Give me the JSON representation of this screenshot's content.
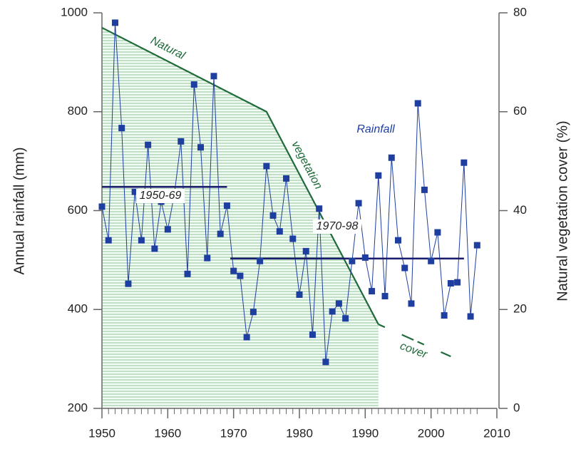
{
  "chart_data": {
    "type": "line",
    "x_label_left": "Annual rainfall (mm)",
    "y2_label": "Natural vegetation cover (%)",
    "xlim": [
      1950,
      2010
    ],
    "xticks": [
      1950,
      1960,
      1970,
      1980,
      1990,
      2000,
      2010
    ],
    "ylim": [
      200,
      1000
    ],
    "yticks": [
      200,
      400,
      600,
      800,
      1000
    ],
    "y2lim": [
      0,
      80
    ],
    "y2ticks": [
      0,
      20,
      40,
      60,
      80
    ],
    "series": [
      {
        "name": "Rainfall",
        "color": "#1e3fa0",
        "x": [
          1950,
          1951,
          1952,
          1953,
          1954,
          1955,
          1956,
          1957,
          1958,
          1959,
          1960,
          1961,
          1962,
          1963,
          1964,
          1965,
          1966,
          1967,
          1968,
          1969,
          1970,
          1971,
          1972,
          1973,
          1974,
          1975,
          1976,
          1977,
          1978,
          1979,
          1980,
          1981,
          1982,
          1983,
          1984,
          1985,
          1986,
          1987,
          1988,
          1989,
          1990,
          1991,
          1992,
          1993,
          1994,
          1995,
          1996,
          1997,
          1998,
          1999,
          2000,
          2001,
          2002,
          2003,
          2004,
          2005,
          2006,
          2007
        ],
        "values": [
          608,
          540,
          980,
          767,
          452,
          638,
          540,
          733,
          523,
          618,
          562,
          633,
          740,
          472,
          855,
          728,
          504,
          872,
          553,
          610,
          478,
          468,
          344,
          395,
          498,
          690,
          590,
          558,
          665,
          543,
          430,
          518,
          349,
          604,
          294,
          396,
          412,
          382,
          498,
          615,
          505,
          437,
          671,
          427,
          707,
          540,
          484,
          412,
          817,
          642,
          498,
          556,
          388,
          453,
          455,
          697,
          386,
          530
        ]
      },
      {
        "name": "Natural vegetation cover",
        "color": "#1f6b3a",
        "axis": "y2",
        "x": [
          1950,
          1975,
          1992,
          2003
        ],
        "values": [
          77,
          60,
          17,
          10.5
        ],
        "dashed_from_x": 1992,
        "shaded": true
      }
    ],
    "mean_lines": [
      {
        "label": "1950-69",
        "value": 648,
        "x": [
          1950,
          1969
        ],
        "color": "#1a1a6e"
      },
      {
        "label": "1970-98",
        "value": 503,
        "x": [
          1969.5,
          2005
        ],
        "color": "#1a1a6e"
      }
    ],
    "annotations": [
      "Natural",
      "vegetation",
      "cover"
    ]
  }
}
